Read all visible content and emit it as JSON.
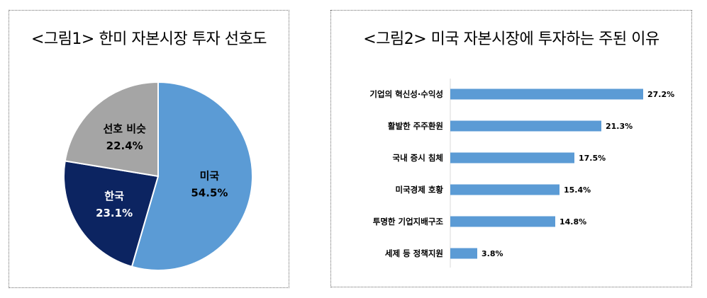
{
  "chart_data": [
    {
      "type": "pie",
      "title": "<그림1> 한미 자본시장 투자 선호도",
      "slices": [
        {
          "label": "미국",
          "value": 54.5,
          "value_label": "54.5%",
          "color": "#5b9bd5"
        },
        {
          "label": "한국",
          "value": 23.1,
          "value_label": "23.1%",
          "color": "#0c2461"
        },
        {
          "label": "선호 비슷",
          "value": 22.4,
          "value_label": "22.4%",
          "color": "#a5a5a5"
        }
      ]
    },
    {
      "type": "bar",
      "orientation": "horizontal",
      "title": "<그림2> 미국 자본시장에 투자하는 주된 이유",
      "categories": [
        "기업의 혁신성·수익성",
        "활발한 주주환원",
        "국내 증시 침체",
        "미국경제 호황",
        "투명한 기업지배구조",
        "세제 등 정책지원"
      ],
      "values": [
        27.2,
        21.3,
        17.5,
        15.4,
        14.8,
        3.8
      ],
      "value_labels": [
        "27.2%",
        "21.3%",
        "17.5%",
        "15.4%",
        "14.8%",
        "3.8%"
      ],
      "xlim": [
        0,
        28
      ],
      "color": "#5b9bd5"
    }
  ]
}
